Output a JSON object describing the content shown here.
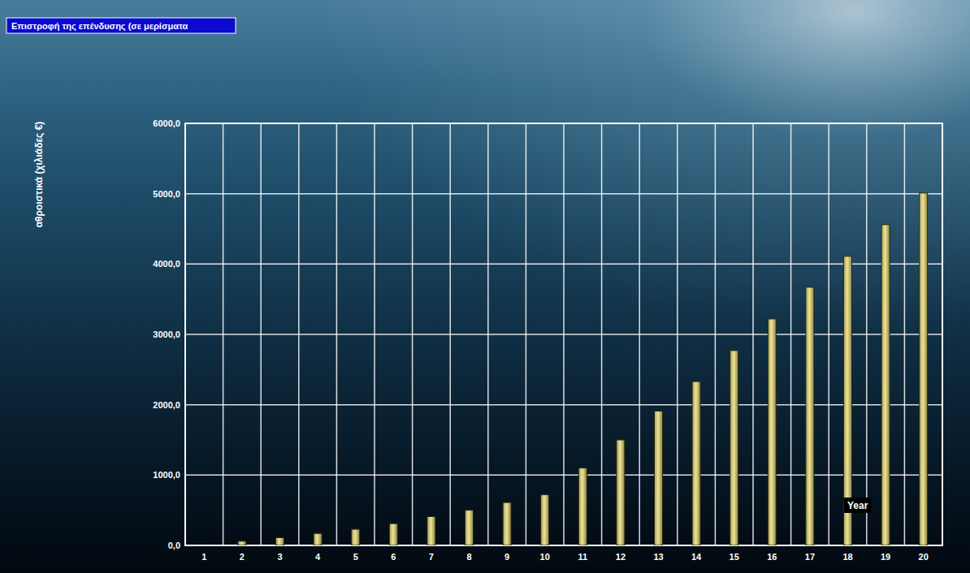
{
  "chart_data": {
    "type": "bar",
    "title": "Επιστροφή της επένδυσης (σε μερίσματα",
    "y_label": "αθροιστικά (χιλιάδες €)",
    "x_label": "Year",
    "categories": [
      "1",
      "2",
      "3",
      "4",
      "5",
      "6",
      "7",
      "8",
      "9",
      "10",
      "11",
      "12",
      "13",
      "14",
      "15",
      "16",
      "17",
      "18",
      "19",
      "20"
    ],
    "values": [
      0,
      60,
      110,
      170,
      230,
      310,
      410,
      500,
      610,
      720,
      1100,
      1500,
      1910,
      2330,
      2770,
      3220,
      3670,
      4110,
      4560,
      5010
    ],
    "color": "#ede49a",
    "ylim": [
      0,
      6000
    ],
    "yticks": [
      {
        "value": 0,
        "label": "0,0"
      },
      {
        "value": 1000,
        "label": "1000,0"
      },
      {
        "value": 2000,
        "label": "2000,0"
      },
      {
        "value": 3000,
        "label": "3000,0"
      },
      {
        "value": 4000,
        "label": "4000,0"
      },
      {
        "value": 5000,
        "label": "5000,0"
      },
      {
        "value": 6000,
        "label": "6000,0"
      }
    ],
    "grid": true
  }
}
